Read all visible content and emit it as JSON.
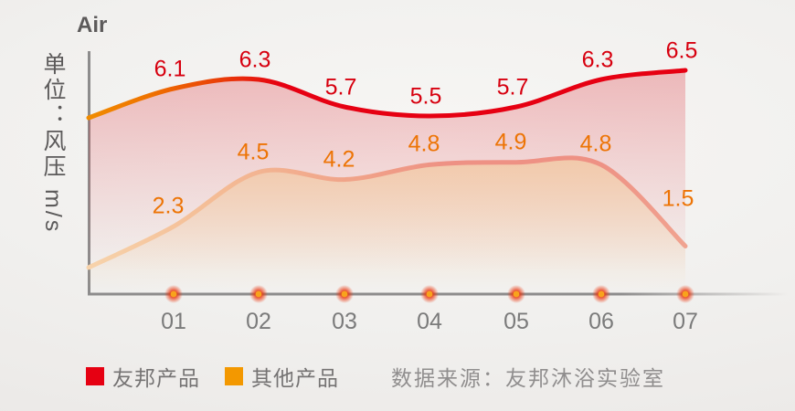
{
  "title": "Air",
  "y_axis_label": "单位：风压 m/s",
  "source_note": "数据来源：友邦沐浴实验室",
  "colors": {
    "red_series": "#e60012",
    "red_series_left_tint": "#f08c00",
    "orange_series_swatch": "#f39800",
    "orange_line": "#ee9184",
    "orange_line_left_tint": "#f7d3ab",
    "red_label": "#d7000f",
    "orange_label": "#ed7405",
    "axis": "#8d8c8c",
    "marker_center": "#f8a31c",
    "marker_halo": "#ea3710",
    "background": "#f0efed"
  },
  "chart_data": {
    "type": "line",
    "title": "Air",
    "ylabel": "单位：风压 m/s",
    "xlabel": "",
    "grid": false,
    "legend_position": "bottom",
    "categories": [
      "01",
      "02",
      "03",
      "04",
      "05",
      "06",
      "07"
    ],
    "series": [
      {
        "name": "友邦产品",
        "color": "#e60012",
        "values": [
          6.1,
          6.3,
          5.7,
          5.5,
          5.7,
          6.3,
          6.5
        ]
      },
      {
        "name": "其他产品",
        "color": "#f39800",
        "values": [
          2.3,
          4.5,
          4.2,
          4.8,
          4.9,
          4.8,
          1.5
        ]
      }
    ],
    "source": "数据来源：友邦沐浴实验室"
  }
}
